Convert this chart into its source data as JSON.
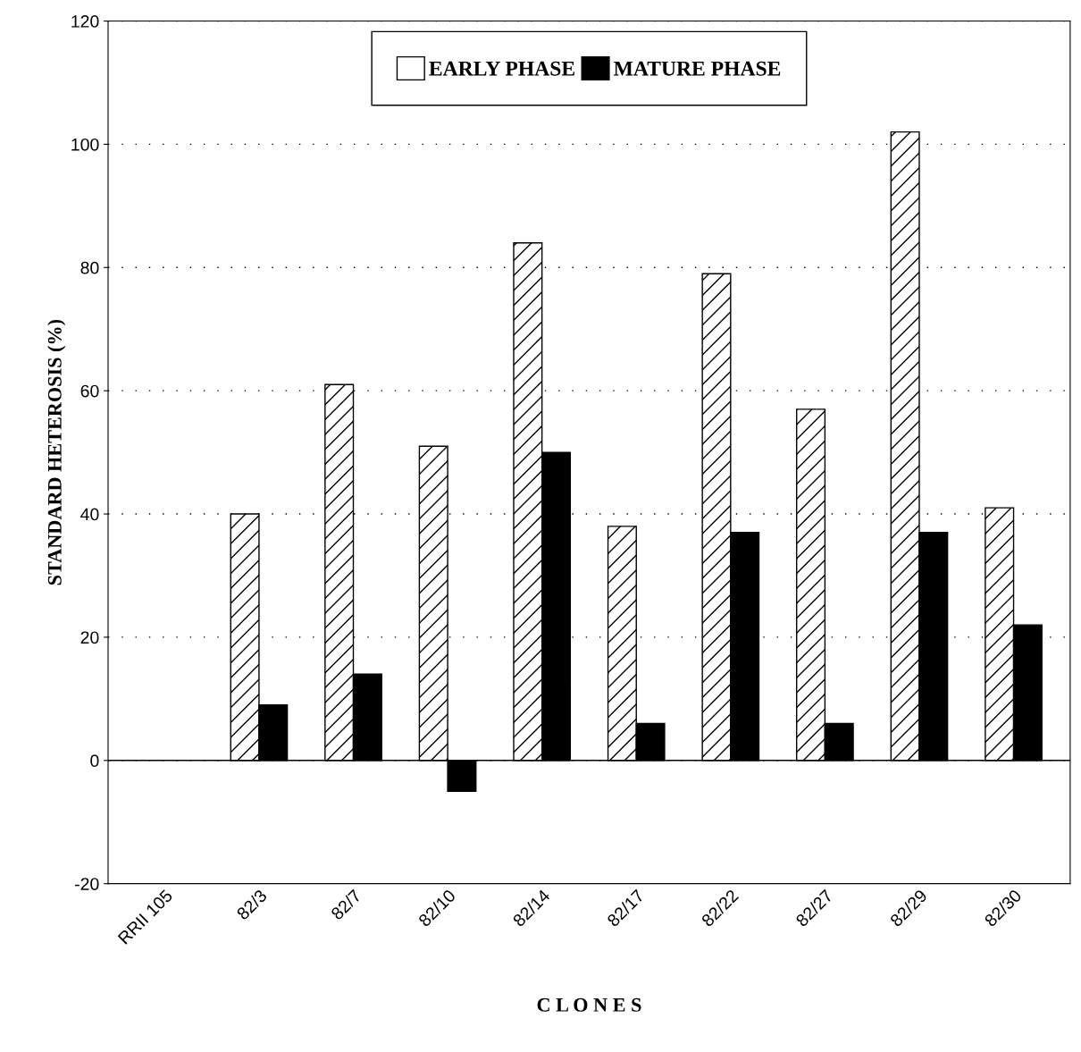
{
  "chart_data": {
    "type": "bar",
    "xlabel": "C L O N E S",
    "ylabel": "STANDARD HETEROSIS (%)",
    "categories": [
      "RRII 105",
      "82/3",
      "82/7",
      "82/10",
      "82/14",
      "82/17",
      "82/22",
      "82/27",
      "82/29",
      "82/30"
    ],
    "series": [
      {
        "name": "EARLY PHASE",
        "color": "#ffffff",
        "values": [
          null,
          40,
          61,
          51,
          84,
          38,
          79,
          57,
          102,
          41
        ]
      },
      {
        "name": "MATURE PHASE",
        "color": "#000000",
        "values": [
          null,
          9,
          14,
          -5,
          50,
          6,
          37,
          6,
          37,
          22
        ]
      }
    ],
    "ylim": [
      -20,
      120
    ],
    "yticks": [
      -20,
      0,
      20,
      40,
      60,
      80,
      100,
      120
    ],
    "grid": "y",
    "legend": "top",
    "ref_lines": [
      {
        "axis": "y",
        "value": 0,
        "color": "#000000"
      }
    ]
  }
}
